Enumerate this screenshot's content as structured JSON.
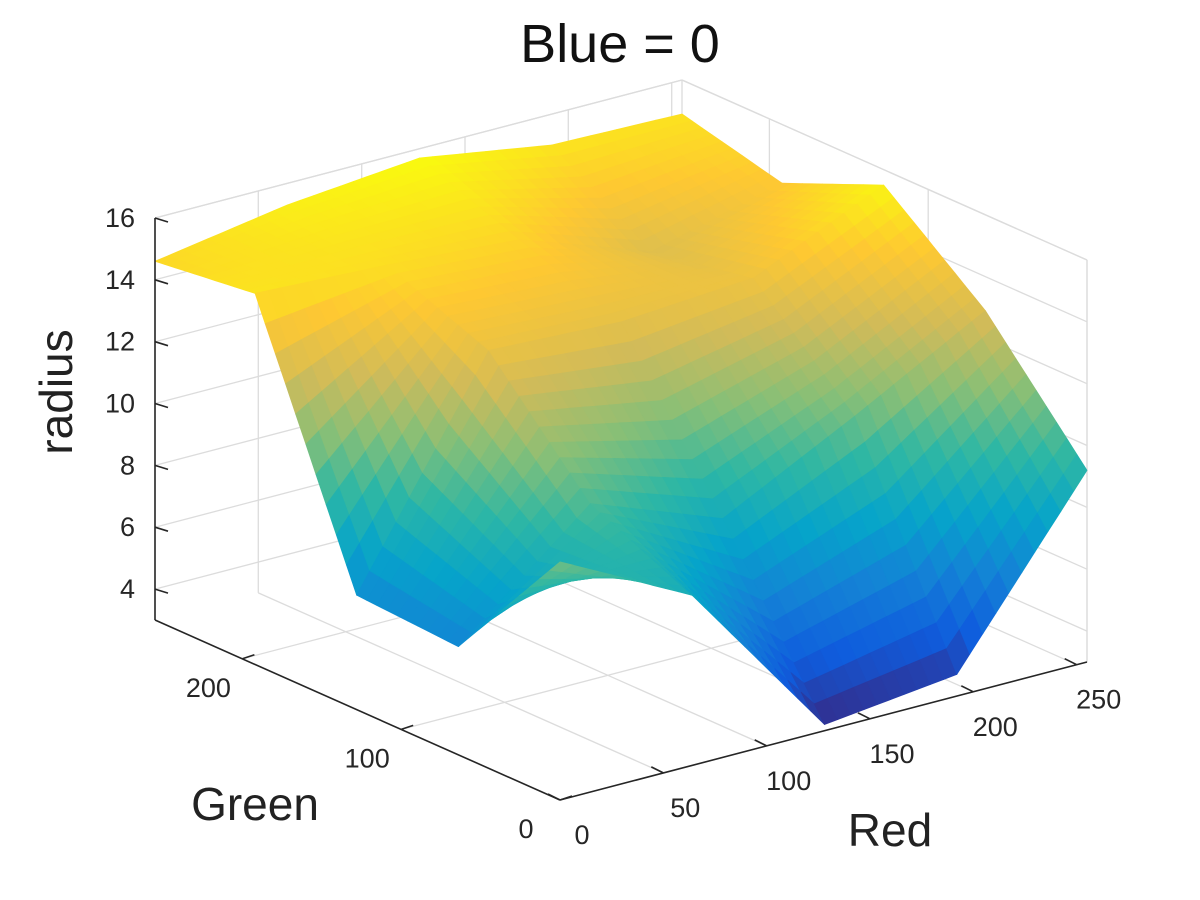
{
  "chart_data": {
    "type": "surface",
    "title": "Blue = 0",
    "xlabel": "Red",
    "ylabel": "Green",
    "zlabel": "radius",
    "x_ticks": [
      0,
      50,
      100,
      150,
      200,
      250
    ],
    "y_ticks": [
      0,
      100,
      200
    ],
    "z_ticks": [
      4,
      6,
      8,
      10,
      12,
      14,
      16
    ],
    "xlim": [
      0,
      255
    ],
    "ylim": [
      0,
      255
    ],
    "zlim": [
      3,
      16
    ],
    "grid": true,
    "colormap": "parula",
    "x": [
      0,
      64,
      128,
      192,
      255
    ],
    "y": [
      0,
      64,
      128,
      192,
      255
    ],
    "z": [
      [
        10.7,
        8.5,
        3.2,
        3.7,
        9.2
      ],
      [
        6.5,
        10.0,
        8.4,
        10.6,
        12.9
      ],
      [
        6.7,
        13.5,
        13.3,
        13.6,
        15.5
      ],
      [
        15.0,
        14.8,
        14.5,
        13.0,
        14.1
      ],
      [
        14.6,
        15.3,
        15.7,
        15.0,
        14.9
      ]
    ]
  },
  "colors": {
    "axis": "#262626",
    "grid": "#dcdcdc",
    "colormap_stops": [
      "#352a87",
      "#0f5cdd",
      "#1481d6",
      "#06a4ca",
      "#2eb7a4",
      "#87bf77",
      "#d1bb59",
      "#fec832",
      "#f9fb0e"
    ]
  }
}
